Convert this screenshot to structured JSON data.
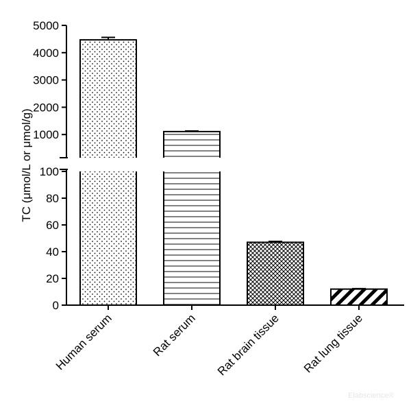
{
  "chart_data": {
    "type": "bar",
    "ylabel": "TC (μmol/L or μmol/g)",
    "categories": [
      "Human serum",
      "Rat serum",
      "Rat brain tissue",
      "Rat lung tissue"
    ],
    "values": [
      4470,
      1110,
      47,
      12
    ],
    "errors": [
      90,
      20,
      0.7,
      0.4
    ],
    "patterns": [
      "dots",
      "horizontal-lines",
      "crosshatch",
      "diagonal-thick"
    ],
    "y_axis_break": true,
    "lower_segment": {
      "ylim": [
        0,
        100
      ],
      "ticks": [
        0,
        20,
        40,
        60,
        80,
        100
      ]
    },
    "upper_segment": {
      "ylim": [
        0,
        5000
      ],
      "ticks": [
        1000,
        2000,
        3000,
        4000,
        5000
      ]
    },
    "grid": false,
    "legend": "none"
  },
  "watermark": "Elabscience®"
}
